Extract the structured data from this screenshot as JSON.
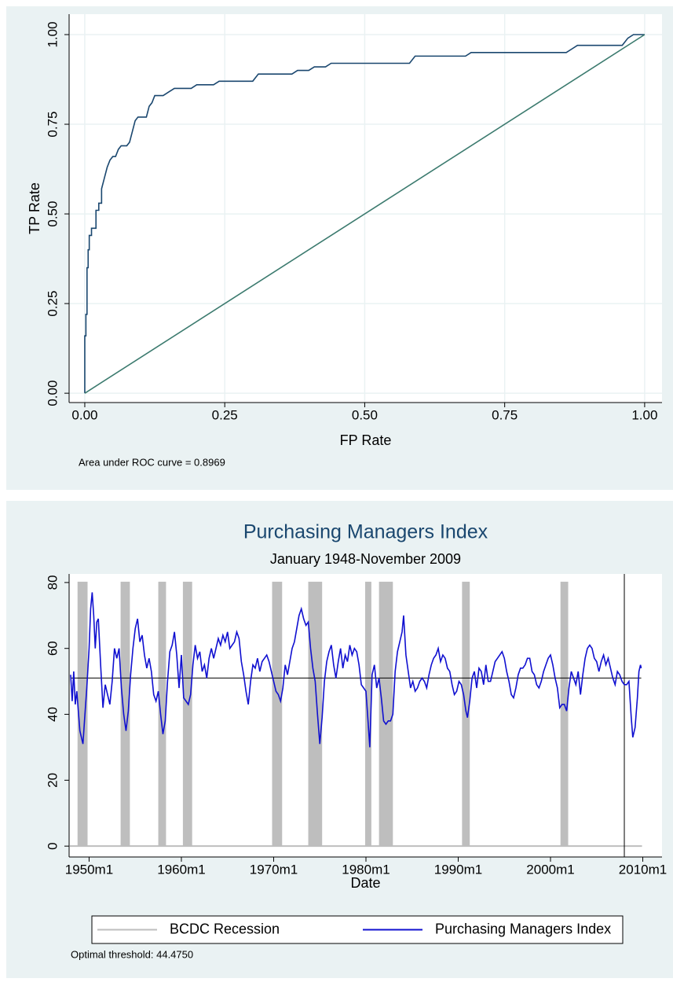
{
  "chart_data": [
    {
      "type": "line",
      "xlabel": "FP Rate",
      "ylabel": "TP Rate",
      "note": "Area under ROC curve = 0.8969",
      "grid": true,
      "xlim": [
        -0.028,
        1.031
      ],
      "ylim": [
        -0.026,
        1.057
      ],
      "xticks": [
        {
          "value": 0,
          "label": "0.00"
        },
        {
          "value": 0.25,
          "label": "0.25"
        },
        {
          "value": 0.5,
          "label": "0.50"
        },
        {
          "value": 0.75,
          "label": "0.75"
        },
        {
          "value": 1,
          "label": "1.00"
        }
      ],
      "yticks": [
        {
          "value": 0,
          "label": "0.00"
        },
        {
          "value": 0.25,
          "label": "0.25"
        },
        {
          "value": 0.5,
          "label": "0.50"
        },
        {
          "value": 0.75,
          "label": "0.75"
        },
        {
          "value": 1,
          "label": "1.00"
        }
      ],
      "series": [
        {
          "color": "#1a476f",
          "x": [
            0,
            0,
            0.002,
            0.002,
            0.004,
            0.004,
            0.006,
            0.006,
            0.008,
            0.008,
            0.012,
            0.012,
            0.02,
            0.02,
            0.025,
            0.025,
            0.03,
            0.03,
            0.035,
            0.04,
            0.045,
            0.05,
            0.055,
            0.06,
            0.065,
            0.075,
            0.08,
            0.085,
            0.09,
            0.095,
            0.11,
            0.115,
            0.12,
            0.125,
            0.14,
            0.15,
            0.16,
            0.19,
            0.2,
            0.23,
            0.24,
            0.3,
            0.31,
            0.37,
            0.38,
            0.4,
            0.41,
            0.43,
            0.44,
            0.58,
            0.59,
            0.68,
            0.69,
            0.86,
            0.87,
            0.88,
            0.96,
            0.97,
            0.98,
            1.0
          ],
          "values": [
            0,
            0.16,
            0.16,
            0.22,
            0.22,
            0.35,
            0.35,
            0.4,
            0.4,
            0.44,
            0.44,
            0.46,
            0.46,
            0.51,
            0.51,
            0.53,
            0.53,
            0.57,
            0.6,
            0.63,
            0.65,
            0.66,
            0.66,
            0.68,
            0.69,
            0.69,
            0.7,
            0.73,
            0.76,
            0.77,
            0.77,
            0.8,
            0.81,
            0.83,
            0.83,
            0.84,
            0.85,
            0.85,
            0.86,
            0.86,
            0.87,
            0.87,
            0.89,
            0.89,
            0.9,
            0.9,
            0.91,
            0.91,
            0.92,
            0.92,
            0.94,
            0.94,
            0.95,
            0.95,
            0.96,
            0.97,
            0.97,
            0.99,
            1.0,
            1.0
          ]
        },
        {
          "color": "#3b7a6e",
          "x": [
            0,
            1
          ],
          "values": [
            0,
            1
          ]
        }
      ]
    },
    {
      "type": "line",
      "title": "Purchasing Managers Index",
      "subtitle": "January 1948-November 2009",
      "xlabel": "Date",
      "note": "Optimal threshold: 44.4750",
      "grid": false,
      "legend": "bottom",
      "hline": 51,
      "xline": "2008m1",
      "xlim": [
        "1947m11",
        "2012m2"
      ],
      "ylim": [
        -3.3,
        82.6
      ],
      "xticks": [
        "1950m1",
        "1960m1",
        "1970m1",
        "1980m1",
        "1990m1",
        "2000m1",
        "2010m1"
      ],
      "yticks": [
        0,
        20,
        40,
        60,
        80
      ],
      "series": [
        {
          "name": "BCDC Recession",
          "color": "#bebebe",
          "kind": "area",
          "x": [
            "1948m1",
            "1948m11",
            "1948m11",
            "1949m10",
            "1949m10",
            "1953m7",
            "1953m7",
            "1954m5",
            "1954m5",
            "1957m8",
            "1957m8",
            "1958m4",
            "1958m4",
            "1960m4",
            "1960m4",
            "1961m2",
            "1961m2",
            "1969m12",
            "1969m12",
            "1970m11",
            "1970m11",
            "1973m11",
            "1973m11",
            "1975m3",
            "1975m3",
            "1980m1",
            "1980m1",
            "1980m7",
            "1980m7",
            "1981m7",
            "1981m7",
            "1982m11",
            "1982m11",
            "1990m7",
            "1990m7",
            "1991m3",
            "1991m3",
            "2001m3",
            "2001m3",
            "2001m11",
            "2001m11",
            "2009m11"
          ],
          "values": [
            0,
            0,
            80,
            80,
            0,
            0,
            80,
            80,
            0,
            0,
            80,
            80,
            0,
            0,
            80,
            80,
            0,
            0,
            80,
            80,
            0,
            0,
            80,
            80,
            0,
            0,
            80,
            80,
            0,
            0,
            80,
            80,
            0,
            0,
            80,
            80,
            0,
            0,
            80,
            80,
            0,
            0
          ]
        },
        {
          "name": "Purchasing Managers Index",
          "color": "#1010d0",
          "kind": "line",
          "x": [
            "1948m1",
            "1948m3",
            "1948m5",
            "1948m7",
            "1948m9",
            "1948m11",
            "1949m1",
            "1949m3",
            "1949m5",
            "1949m7",
            "1949m10",
            "1950m1",
            "1950m3",
            "1950m5",
            "1950m7",
            "1950m9",
            "1950m11",
            "1951m1",
            "1951m4",
            "1951m7",
            "1951m10",
            "1952m1",
            "1952m4",
            "1952m7",
            "1952m10",
            "1953m1",
            "1953m4",
            "1953m7",
            "1953m10",
            "1954m1",
            "1954m4",
            "1954m7",
            "1954m10",
            "1955m1",
            "1955m4",
            "1955m7",
            "1955m10",
            "1956m1",
            "1956m4",
            "1956m7",
            "1956m10",
            "1957m1",
            "1957m4",
            "1957m7",
            "1957m10",
            "1958m1",
            "1958m4",
            "1958m7",
            "1958m10",
            "1959m1",
            "1959m4",
            "1959m7",
            "1959m10",
            "1960m1",
            "1960m4",
            "1960m7",
            "1960m10",
            "1961m1",
            "1961m4",
            "1961m7",
            "1961m10",
            "1962m1",
            "1962m4",
            "1962m7",
            "1962m10",
            "1963m1",
            "1963m4",
            "1963m7",
            "1963m10",
            "1964m1",
            "1964m4",
            "1964m7",
            "1964m10",
            "1965m1",
            "1965m4",
            "1965m7",
            "1965m10",
            "1966m1",
            "1966m4",
            "1966m7",
            "1966m10",
            "1967m1",
            "1967m4",
            "1967m7",
            "1967m10",
            "1968m1",
            "1968m4",
            "1968m7",
            "1968m10",
            "1969m1",
            "1969m4",
            "1969m7",
            "1969m10",
            "1970m1",
            "1970m4",
            "1970m7",
            "1970m10",
            "1971m1",
            "1971m4",
            "1971m7",
            "1971m10",
            "1972m1",
            "1972m4",
            "1972m7",
            "1972m10",
            "1973m1",
            "1973m4",
            "1973m7",
            "1973m10",
            "1974m1",
            "1974m4",
            "1974m7",
            "1974m10",
            "1975m1",
            "1975m4",
            "1975m7",
            "1975m10",
            "1976m1",
            "1976m4",
            "1976m7",
            "1976m10",
            "1977m1",
            "1977m4",
            "1977m7",
            "1977m10",
            "1978m1",
            "1978m4",
            "1978m7",
            "1978m10",
            "1979m1",
            "1979m4",
            "1979m7",
            "1979m10",
            "1980m1",
            "1980m4",
            "1980m6",
            "1980m9",
            "1980m12",
            "1981m3",
            "1981m6",
            "1981m9",
            "1981m12",
            "1982m3",
            "1982m6",
            "1982m9",
            "1982m12",
            "1983m3",
            "1983m6",
            "1983m9",
            "1983m12",
            "1984m2",
            "1984m5",
            "1984m8",
            "1984m11",
            "1985m2",
            "1985m5",
            "1985m8",
            "1985m11",
            "1986m2",
            "1986m5",
            "1986m8",
            "1986m11",
            "1987m2",
            "1987m5",
            "1987m8",
            "1987m11",
            "1988m2",
            "1988m5",
            "1988m8",
            "1988m11",
            "1989m2",
            "1989m5",
            "1989m8",
            "1989m11",
            "1990m2",
            "1990m5",
            "1990m8",
            "1990m11",
            "1991m1",
            "1991m4",
            "1991m7",
            "1991m10",
            "1992m1",
            "1992m4",
            "1992m7",
            "1992m10",
            "1993m1",
            "1993m4",
            "1993m7",
            "1993m10",
            "1994m1",
            "1994m4",
            "1994m7",
            "1994m10",
            "1995m1",
            "1995m4",
            "1995m7",
            "1995m10",
            "1996m1",
            "1996m4",
            "1996m7",
            "1996m10",
            "1997m1",
            "1997m4",
            "1997m7",
            "1997m10",
            "1998m1",
            "1998m4",
            "1998m7",
            "1998m10",
            "1999m1",
            "1999m4",
            "1999m7",
            "1999m10",
            "2000m1",
            "2000m4",
            "2000m7",
            "2000m10",
            "2001m1",
            "2001m4",
            "2001m7",
            "2001m10",
            "2002m1",
            "2002m4",
            "2002m7",
            "2002m10",
            "2003m1",
            "2003m4",
            "2003m7",
            "2003m10",
            "2004m1",
            "2004m4",
            "2004m7",
            "2004m10",
            "2005m1",
            "2005m4",
            "2005m7",
            "2005m10",
            "2006m1",
            "2006m4",
            "2006m7",
            "2006m10",
            "2007m1",
            "2007m4",
            "2007m7",
            "2007m10",
            "2008m1",
            "2008m4",
            "2008m7",
            "2008m10",
            "2008m12",
            "2009m3",
            "2009m6",
            "2009m8",
            "2009m10",
            "2009m11"
          ],
          "values": [
            52,
            44,
            53,
            43,
            47,
            41,
            35,
            33,
            31,
            38,
            48,
            60,
            72,
            77,
            70,
            60,
            68,
            69,
            55,
            42,
            49,
            46,
            43,
            50,
            60,
            57,
            60,
            48,
            40,
            35,
            41,
            52,
            60,
            66,
            69,
            62,
            64,
            58,
            54,
            57,
            53,
            46,
            44,
            47,
            40,
            34,
            38,
            50,
            59,
            61,
            65,
            58,
            48,
            58,
            45,
            44,
            43,
            46,
            55,
            61,
            57,
            59,
            53,
            55,
            51,
            57,
            60,
            57,
            60,
            63,
            61,
            64,
            62,
            65,
            60,
            61,
            62,
            65,
            63,
            56,
            52,
            47,
            43,
            50,
            55,
            54,
            57,
            53,
            56,
            57,
            58,
            56,
            53,
            50,
            47,
            46,
            44,
            48,
            55,
            52,
            56,
            60,
            62,
            66,
            70,
            72,
            69,
            67,
            68,
            60,
            54,
            50,
            40,
            31,
            39,
            50,
            56,
            59,
            61,
            55,
            51,
            56,
            60,
            54,
            58,
            56,
            61,
            58,
            60,
            59,
            55,
            49,
            48,
            47,
            37,
            30,
            52,
            55,
            48,
            51,
            45,
            38,
            37,
            38,
            38,
            40,
            53,
            59,
            62,
            65,
            70,
            58,
            53,
            48,
            50,
            47,
            48,
            50,
            51,
            50,
            48,
            52,
            55,
            57,
            58,
            60,
            56,
            58,
            57,
            54,
            53,
            49,
            46,
            47,
            50,
            49,
            46,
            41,
            39,
            44,
            51,
            53,
            48,
            54,
            53,
            49,
            55,
            50,
            50,
            53,
            56,
            57,
            58,
            59,
            57,
            53,
            50,
            46,
            45,
            48,
            52,
            54,
            54,
            55,
            57,
            57,
            53,
            52,
            49,
            48,
            50,
            53,
            55,
            57,
            58,
            55,
            51,
            48,
            42,
            43,
            43,
            41,
            48,
            53,
            51,
            49,
            53,
            46,
            52,
            57,
            60,
            61,
            60,
            57,
            56,
            53,
            56,
            58,
            55,
            57,
            54,
            51,
            49,
            53,
            52,
            50,
            49,
            49,
            50,
            39,
            33,
            36,
            45,
            53,
            55,
            54
          ]
        }
      ]
    }
  ]
}
